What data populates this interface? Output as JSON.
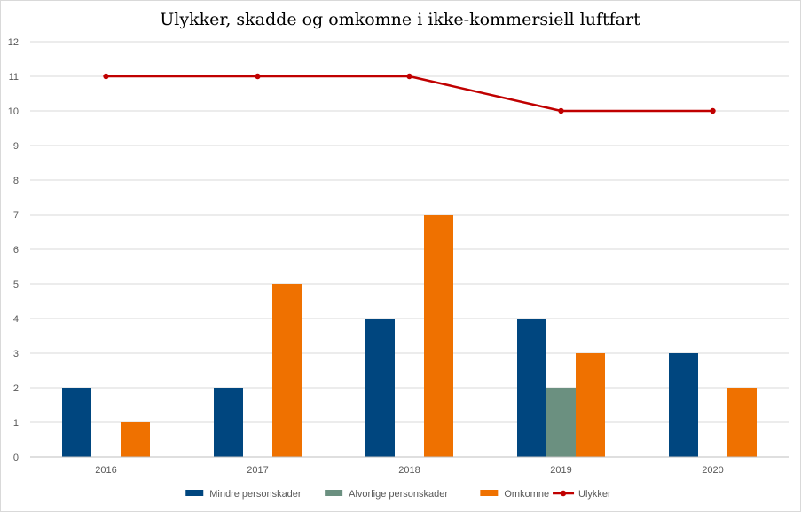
{
  "chart_data": {
    "type": "bar",
    "title": "Ulykker, skadde og omkomne i ikke-kommersiell luftfart",
    "xlabel": "",
    "ylabel": "",
    "categories": [
      "2016",
      "2017",
      "2018",
      "2019",
      "2020"
    ],
    "ylim": [
      0,
      12
    ],
    "yticks": [
      0,
      1,
      2,
      3,
      4,
      5,
      6,
      7,
      8,
      9,
      10,
      11,
      12
    ],
    "grid": true,
    "legend_position": "bottom",
    "series": [
      {
        "name": "Mindre personskader",
        "type": "bar",
        "color": "#00467f",
        "values": [
          2,
          2,
          4,
          4,
          3
        ]
      },
      {
        "name": "Alvorlige personskader",
        "type": "bar",
        "color": "#6b9080",
        "values": [
          0,
          0,
          0,
          2,
          0
        ]
      },
      {
        "name": "Omkomne",
        "type": "bar",
        "color": "#ef7100",
        "values": [
          1,
          5,
          7,
          3,
          2
        ]
      },
      {
        "name": "Ulykker",
        "type": "line",
        "color": "#c00000",
        "values": [
          11,
          11,
          11,
          10,
          10
        ]
      }
    ]
  }
}
